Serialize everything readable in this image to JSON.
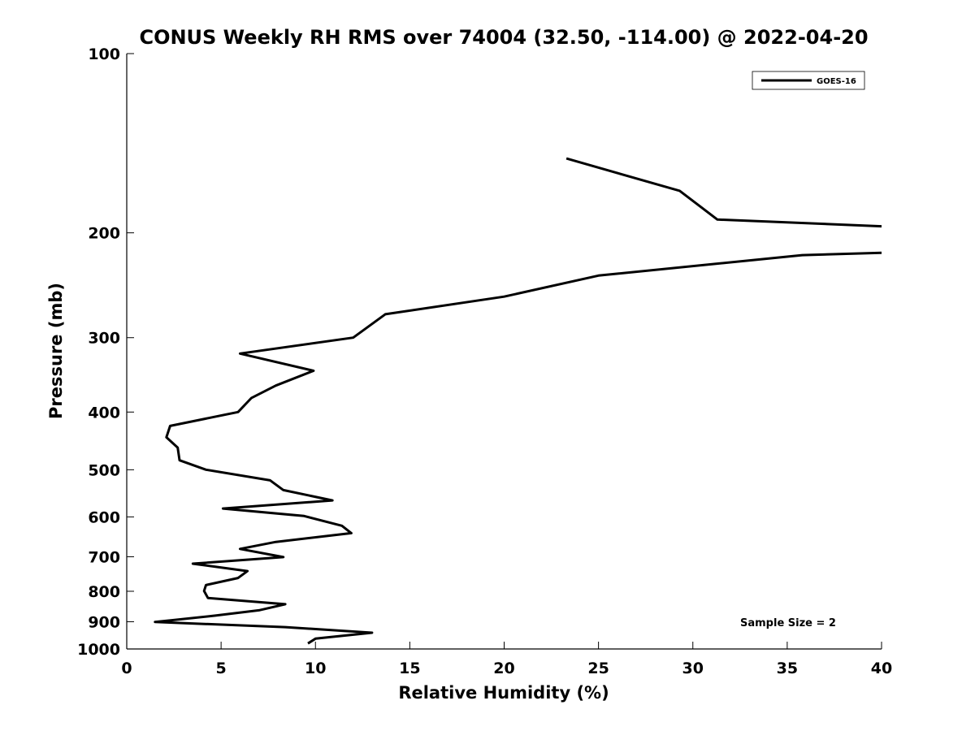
{
  "chart_data": {
    "type": "line",
    "title": "CONUS Weekly RH RMS over 74004 (32.50, -114.00) @ 2022-04-20",
    "xlabel": "Relative Humidity (%)",
    "ylabel": "Pressure (mb)",
    "xlim": [
      0,
      40
    ],
    "ylim": [
      100,
      1000
    ],
    "y_scale": "log",
    "y_reversed": true,
    "grid": false,
    "legend_position": "top-right",
    "x_ticks": [
      0,
      5,
      10,
      15,
      20,
      25,
      30,
      35,
      40
    ],
    "y_ticks": [
      100,
      200,
      300,
      400,
      500,
      600,
      700,
      800,
      900,
      1000
    ],
    "series": [
      {
        "name": "GOES-16",
        "color": "#000000",
        "segments": [
          [
            [
              23.3,
              150
            ],
            [
              29.3,
              170
            ],
            [
              31.3,
              190
            ],
            [
              40.0,
              195
            ]
          ],
          [
            [
              40.0,
              216
            ],
            [
              35.8,
              218
            ],
            [
              25.0,
              236
            ],
            [
              20.0,
              256
            ],
            [
              13.7,
              274
            ],
            [
              12.0,
              300
            ],
            [
              6.0,
              319
            ],
            [
              9.9,
              341
            ],
            [
              7.9,
              361
            ],
            [
              6.6,
              379
            ],
            [
              5.9,
              400
            ],
            [
              2.3,
              422
            ],
            [
              2.1,
              441
            ],
            [
              2.7,
              459
            ],
            [
              2.8,
              482
            ],
            [
              4.2,
              500
            ],
            [
              7.6,
              521
            ],
            [
              8.3,
              541
            ],
            [
              10.9,
              563
            ],
            [
              5.1,
              581
            ],
            [
              9.4,
              598
            ],
            [
              11.4,
              621
            ],
            [
              11.9,
              639
            ],
            [
              7.9,
              661
            ],
            [
              6.0,
              679
            ],
            [
              8.3,
              701
            ],
            [
              3.5,
              719
            ],
            [
              6.4,
              740
            ],
            [
              5.9,
              760
            ],
            [
              4.2,
              781
            ],
            [
              4.1,
              799
            ],
            [
              4.3,
              821
            ],
            [
              8.4,
              841
            ],
            [
              7.0,
              861
            ],
            [
              4.7,
              879
            ],
            [
              1.5,
              901
            ],
            [
              8.4,
              919
            ],
            [
              13.0,
              939
            ],
            [
              10.0,
              961
            ],
            [
              9.6,
              979
            ]
          ]
        ]
      }
    ],
    "annotations": [
      "Sample Size = 2"
    ]
  }
}
